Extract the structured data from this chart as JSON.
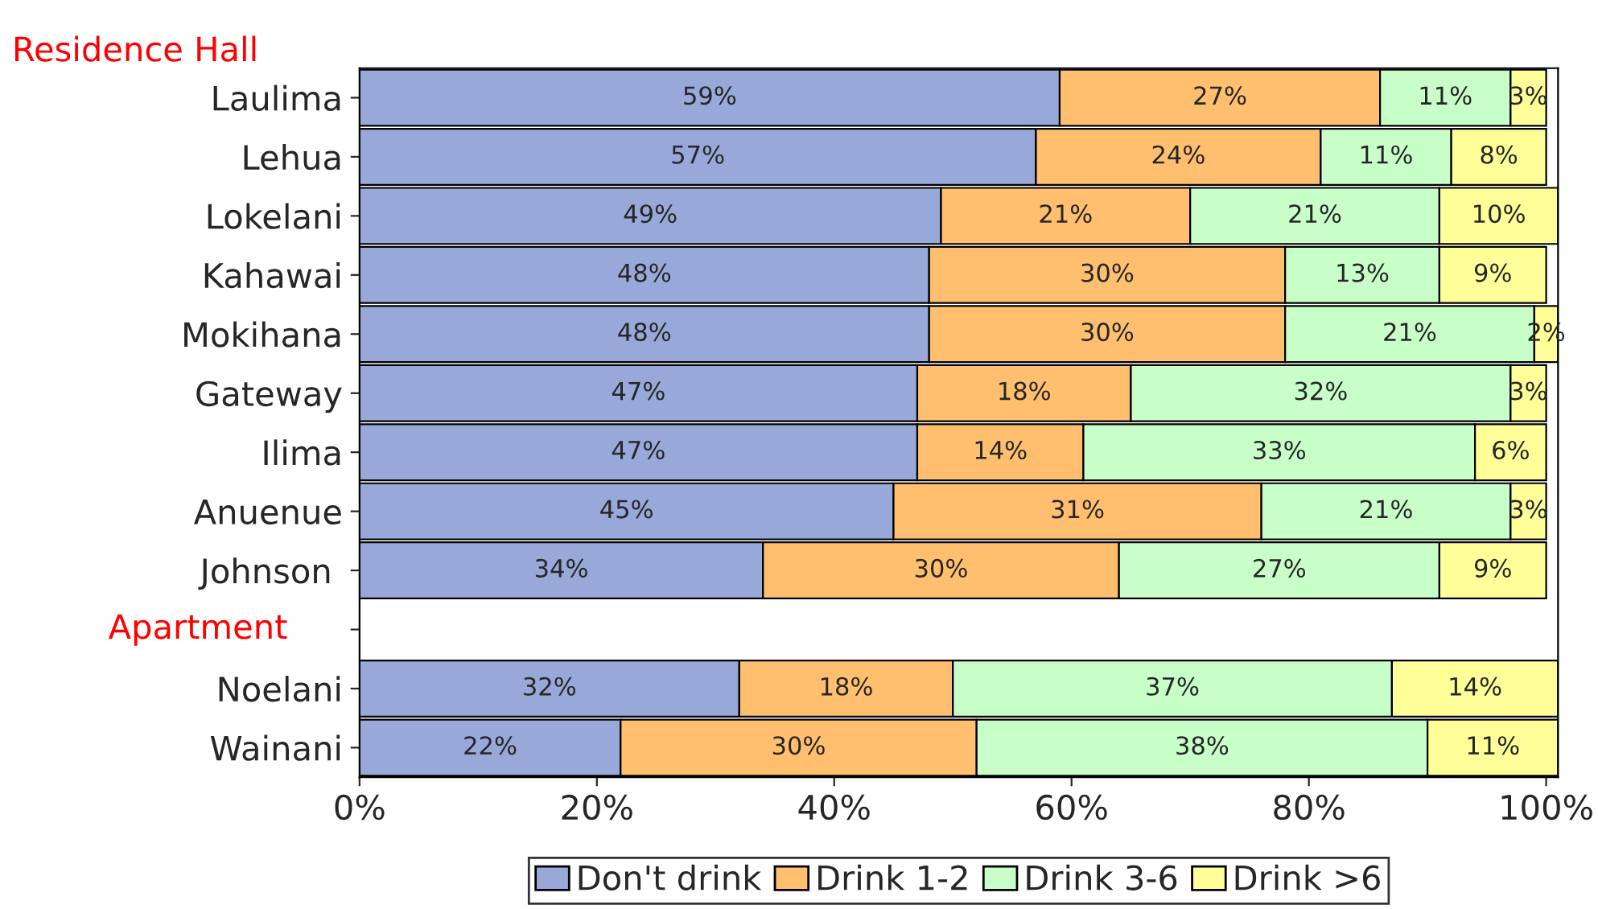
{
  "chart_data": {
    "type": "bar",
    "orientation": "horizontal",
    "stacked": true,
    "categories": [
      "Laulima",
      "Lehua",
      "Lokelani",
      "Kahawai",
      "Mokihana",
      "Gateway",
      "Ilima",
      "Anuenue",
      "Johnson ",
      null,
      "Noelani",
      "Wainani"
    ],
    "series": [
      {
        "name": "Don't drink",
        "color": "#98a8d8",
        "values": [
          59,
          57,
          49,
          48,
          48,
          47,
          47,
          45,
          34,
          null,
          32,
          22
        ],
        "value_labels": [
          "59%",
          "57%",
          "49%",
          "48%",
          "48%",
          "47%",
          "47%",
          "45%",
          "34%",
          null,
          "32%",
          "22%"
        ]
      },
      {
        "name": "Drink 1-2",
        "color": "#ffbf6f",
        "values": [
          27,
          24,
          21,
          30,
          30,
          18,
          14,
          31,
          30,
          null,
          18,
          30
        ],
        "value_labels": [
          "27%",
          "24%",
          "21%",
          "30%",
          "30%",
          "18%",
          "14%",
          "31%",
          "30%",
          null,
          "18%",
          "30%"
        ]
      },
      {
        "name": "Drink 3-6",
        "color": "#c8ffc8",
        "values": [
          11,
          11,
          21,
          13,
          21,
          32,
          33,
          21,
          27,
          null,
          37,
          38
        ],
        "value_labels": [
          "11%",
          "11%",
          "21%",
          "13%",
          "21%",
          "32%",
          "33%",
          "21%",
          "27%",
          null,
          "37%",
          "38%"
        ]
      },
      {
        "name": "Drink >6",
        "color": "#ffff99",
        "values": [
          3,
          8,
          10,
          9,
          2,
          3,
          6,
          3,
          9,
          null,
          14,
          11
        ],
        "value_labels": [
          "3%",
          "8%",
          "10%",
          "9%",
          "2%",
          "3%",
          "6%",
          "3%",
          "9%",
          null,
          "14%",
          "11%"
        ]
      }
    ],
    "xlim": [
      0,
      101
    ],
    "xticks": [
      {
        "value": 0,
        "label": "0%"
      },
      {
        "value": 20,
        "label": "20%"
      },
      {
        "value": 40,
        "label": "40%"
      },
      {
        "value": 60,
        "label": "60%"
      },
      {
        "value": 80,
        "label": "80%"
      },
      {
        "value": 100,
        "label": "100%"
      }
    ],
    "annotations": [
      "Residence Hall",
      "Apartment"
    ],
    "legend": "bottom",
    "grid": false
  }
}
